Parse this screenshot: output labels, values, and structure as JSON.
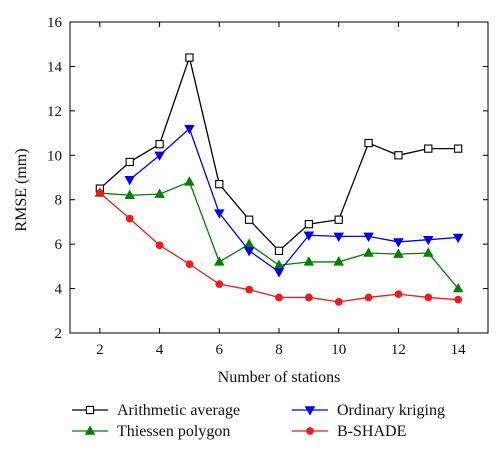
{
  "chart_data": {
    "type": "line",
    "xlabel": "Number of stations",
    "ylabel": "RMSE (mm)",
    "xlim": [
      1,
      15
    ],
    "ylim": [
      2,
      16
    ],
    "xticks": [
      2,
      4,
      6,
      8,
      10,
      12,
      14
    ],
    "yticks": [
      2,
      4,
      6,
      8,
      10,
      12,
      14,
      16
    ],
    "grid": false,
    "legend_position": "bottom",
    "series": [
      {
        "name": "Arithmetic average",
        "marker": "open-square",
        "color": "#000000",
        "x": [
          2,
          3,
          4,
          5,
          6,
          7,
          8,
          9,
          10,
          11,
          12,
          13,
          14
        ],
        "y": [
          8.5,
          9.7,
          10.5,
          14.4,
          8.7,
          7.1,
          5.7,
          6.9,
          7.1,
          10.55,
          10.0,
          10.3,
          10.3
        ]
      },
      {
        "name": "Thiessen polygon",
        "marker": "triangle-up",
        "color": "#008000",
        "x": [
          2,
          3,
          4,
          5,
          6,
          7,
          8,
          9,
          10,
          11,
          12,
          13,
          14
        ],
        "y": [
          8.3,
          8.2,
          8.25,
          8.8,
          5.2,
          6.0,
          5.05,
          5.2,
          5.2,
          5.6,
          5.55,
          5.6,
          4.0
        ]
      },
      {
        "name": "Ordinary kriging",
        "marker": "triangle-down",
        "color": "#0000ee",
        "x": [
          3,
          4,
          5,
          6,
          7,
          8,
          9,
          10,
          11,
          12,
          13,
          14
        ],
        "y": [
          8.9,
          10.0,
          11.2,
          7.4,
          5.7,
          4.75,
          6.4,
          6.35,
          6.35,
          6.1,
          6.2,
          6.3
        ]
      },
      {
        "name": "B-SHADE",
        "marker": "circle",
        "color": "#ee1c1c",
        "x": [
          2,
          3,
          4,
          5,
          6,
          7,
          8,
          9,
          10,
          11,
          12,
          13,
          14
        ],
        "y": [
          8.3,
          7.15,
          5.95,
          5.1,
          4.2,
          3.95,
          3.6,
          3.6,
          3.4,
          3.6,
          3.75,
          3.6,
          3.5
        ]
      }
    ]
  }
}
